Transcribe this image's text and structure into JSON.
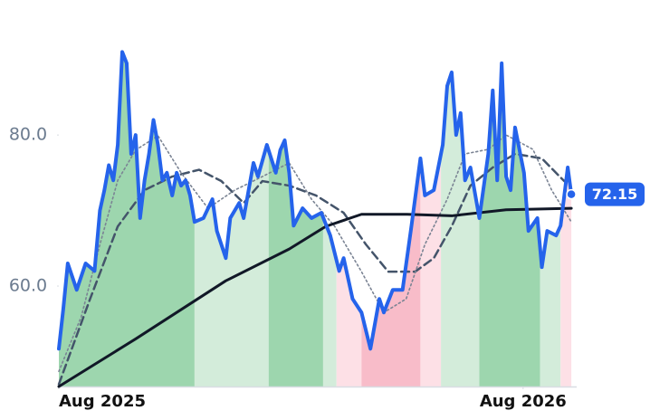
{
  "chart_data": {
    "type": "line",
    "xlim": [
      0,
      58
    ],
    "ylim": [
      46.7,
      95
    ],
    "xticks": [
      {
        "value": 0,
        "label": "Aug 2025"
      },
      {
        "value": 52,
        "label": "Aug 2026"
      }
    ],
    "yticks": [
      {
        "value": 60,
        "label": "60.0"
      },
      {
        "value": 80,
        "label": "80.0"
      }
    ],
    "regions": [
      {
        "from": 0,
        "to": 15.2,
        "color": "#9dd6ae"
      },
      {
        "from": 15.2,
        "to": 23.5,
        "color": "#d3ecda"
      },
      {
        "from": 23.5,
        "to": 29.6,
        "color": "#9dd6ae"
      },
      {
        "from": 29.6,
        "to": 31.1,
        "color": "#d3ecda"
      },
      {
        "from": 31.1,
        "to": 33.9,
        "color": "#fde0e6"
      },
      {
        "from": 33.9,
        "to": 40.5,
        "color": "#f8bcc9"
      },
      {
        "from": 40.5,
        "to": 42.8,
        "color": "#fde0e6"
      },
      {
        "from": 42.8,
        "to": 47.1,
        "color": "#d3ecda"
      },
      {
        "from": 47.1,
        "to": 53.9,
        "color": "#9dd6ae"
      },
      {
        "from": 53.9,
        "to": 56.2,
        "color": "#d3ecda"
      },
      {
        "from": 56.2,
        "to": 58,
        "color": "#fde0e6"
      }
    ],
    "series": [
      {
        "color": "#2563eb",
        "style": "solid",
        "width": 4,
        "last_label": true,
        "x": [
          0,
          0.5,
          1,
          2,
          3,
          4,
          4.6,
          5.1,
          5.6,
          6.1,
          6.6,
          7.1,
          7.6,
          8.1,
          8.6,
          9.1,
          9.6,
          10.1,
          10.6,
          11.1,
          11.6,
          12.1,
          12.7,
          13.2,
          13.7,
          14.2,
          14.7,
          15.2,
          16.2,
          17.2,
          17.7,
          18.7,
          19.2,
          20.2,
          20.7,
          21.8,
          22.3,
          23.3,
          24.3,
          24.8,
          25.3,
          25.8,
          26.3,
          27.3,
          28.3,
          29.4,
          30.4,
          31.4,
          31.9,
          32.9,
          33.9,
          34.9,
          35.9,
          36.4,
          37.4,
          38.5,
          39.5,
          40.5,
          41,
          42,
          43,
          43.5,
          44,
          44.5,
          45,
          45.5,
          46.1,
          47.1,
          48.1,
          48.6,
          49.1,
          49.6,
          50.1,
          50.6,
          51.1,
          52.1,
          52.6,
          53.6,
          54.1,
          54.7,
          55.7,
          56.2,
          57,
          57.4
        ],
        "values": [
          51.7,
          57,
          63,
          59.5,
          63,
          62,
          70,
          72.7,
          76,
          74,
          78.7,
          91,
          89.5,
          77.5,
          80,
          69,
          74,
          77.5,
          82,
          78.7,
          74,
          75,
          72,
          75,
          73.3,
          74,
          72,
          68.5,
          69,
          71.5,
          67.3,
          63.7,
          69,
          71,
          69,
          76.3,
          74.5,
          78.7,
          75,
          78,
          79.3,
          75,
          68,
          70.3,
          69,
          69.7,
          66.7,
          62,
          63.7,
          58.3,
          56.5,
          51.7,
          58.3,
          56.5,
          59.5,
          59.5,
          68,
          76.9,
          72,
          72.7,
          78.7,
          86.5,
          88.3,
          80,
          82.9,
          74,
          75.7,
          69,
          77.5,
          85.9,
          74,
          89.5,
          74.5,
          72.7,
          81,
          75,
          67.3,
          69,
          62.5,
          67.3,
          66.7,
          68,
          75.7,
          72.15
        ]
      },
      {
        "color": "#44546a",
        "style": "dashed",
        "width": 2.5,
        "x": [
          0,
          3.5,
          6.6,
          9.6,
          12.7,
          15.7,
          18.2,
          20.7,
          22.8,
          25.8,
          28.8,
          31.9,
          34.4,
          36.9,
          39.9,
          42,
          44,
          46.1,
          48.6,
          51.1,
          54.1,
          56.6
        ],
        "values": [
          47,
          58.3,
          67.9,
          72.7,
          74.5,
          75.4,
          73.9,
          71,
          73.9,
          73.3,
          72,
          69.7,
          65.5,
          61.9,
          61.9,
          63.7,
          67.9,
          73.3,
          75.7,
          77.5,
          76.9,
          73.9
        ]
      },
      {
        "color": "#7b8494",
        "style": "dotted",
        "width": 1.6,
        "x": [
          0,
          2.5,
          4.6,
          6.6,
          8.6,
          11.1,
          13.7,
          16.7,
          19.7,
          22.8,
          25.8,
          28.3,
          30.9,
          33.9,
          36.4,
          38.9,
          41,
          43.5,
          45.5,
          48.1,
          50.1,
          53.1,
          55.2,
          57.4
        ],
        "values": [
          48.7,
          55.9,
          65.5,
          74,
          78,
          79.9,
          75,
          70.3,
          72.7,
          74.5,
          76.3,
          71.5,
          67.9,
          61.9,
          56.5,
          58.3,
          65.5,
          71.5,
          77.5,
          78.1,
          80,
          78.1,
          72.7,
          68.5
        ]
      },
      {
        "color": "#111827",
        "style": "solid",
        "width": 3,
        "x": [
          0,
          8.6,
          18.7,
          25.8,
          29.9,
          33.9,
          39,
          44,
          50.1,
          57.4
        ],
        "values": [
          46.7,
          53,
          60.7,
          64.9,
          67.9,
          69.5,
          69.5,
          69.3,
          70.1,
          70.3
        ]
      }
    ]
  }
}
